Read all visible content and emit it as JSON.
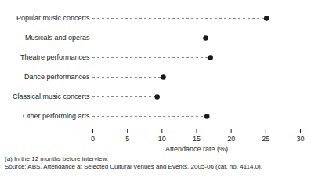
{
  "chart_data": {
    "type": "dot",
    "orientation": "horizontal",
    "categories": [
      "Popular music concerts",
      "Musicals and operas",
      "Theatre performances",
      "Dance performances",
      "Classical music concerts",
      "Other performing arts"
    ],
    "values": [
      25.1,
      16.3,
      17.0,
      10.2,
      9.3,
      16.5
    ],
    "color": "#1a1a1a",
    "line_style": "dashed",
    "marker": "circle",
    "xlim": [
      0,
      30
    ],
    "xticks": [
      0,
      5,
      10,
      15,
      20,
      25,
      30
    ],
    "x_label": "Attendance rate (%)",
    "grid": false,
    "annotations": [
      "(a) In the 12 months before interview.",
      "Source: ABS, Attendance at Selected Cultural Venues and Events, 2005-06 (cat. no. 4114.0)."
    ]
  }
}
